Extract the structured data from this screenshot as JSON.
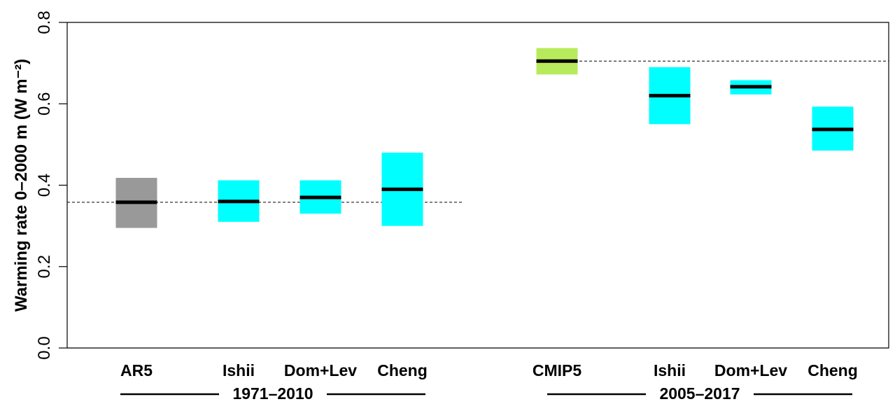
{
  "chart_data": {
    "type": "bar",
    "ylabel": "Warming rate 0–2000 m (W m⁻²)",
    "ylim": [
      0.0,
      0.8
    ],
    "yticks": [
      "0.0",
      "0.2",
      "0.4",
      "0.6",
      "0.8"
    ],
    "grid": false,
    "groups": [
      {
        "label": "1971–2010",
        "reference": 0.358,
        "bars": [
          {
            "label": "AR5",
            "low": 0.295,
            "high": 0.418,
            "central": 0.358,
            "color": "#999999"
          },
          {
            "label": "Ishii",
            "low": 0.31,
            "high": 0.412,
            "central": 0.36,
            "color": "#00ffff"
          },
          {
            "label": "Dom+Lev",
            "low": 0.33,
            "high": 0.412,
            "central": 0.37,
            "color": "#00ffff"
          },
          {
            "label": "Cheng",
            "low": 0.3,
            "high": 0.48,
            "central": 0.39,
            "color": "#00ffff"
          }
        ]
      },
      {
        "label": "2005–2017",
        "reference": 0.705,
        "bars": [
          {
            "label": "CMIP5",
            "low": 0.672,
            "high": 0.737,
            "central": 0.705,
            "color": "#b8eb5c"
          },
          {
            "label": "Ishii",
            "low": 0.55,
            "high": 0.69,
            "central": 0.62,
            "color": "#00ffff"
          },
          {
            "label": "Dom+Lev",
            "low": 0.623,
            "high": 0.658,
            "central": 0.642,
            "color": "#00ffff"
          },
          {
            "label": "Cheng",
            "low": 0.485,
            "high": 0.593,
            "central": 0.537,
            "color": "#00ffff"
          }
        ]
      }
    ]
  }
}
